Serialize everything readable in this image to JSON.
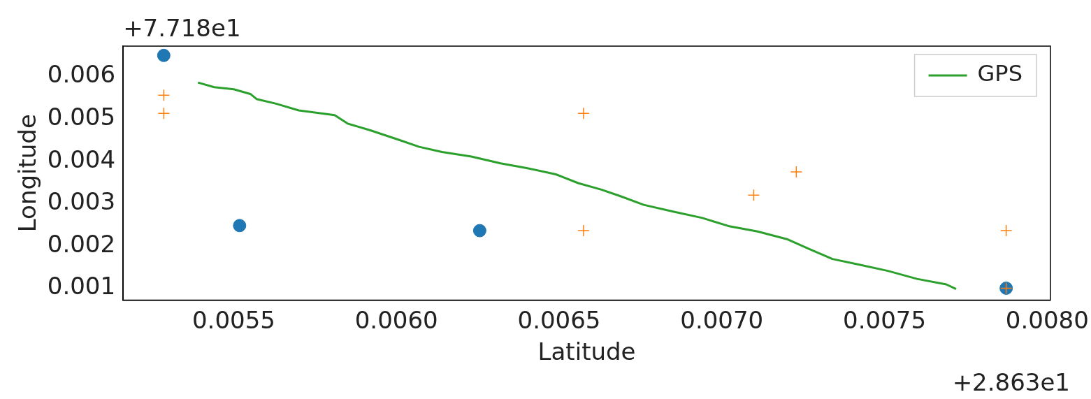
{
  "chart_data": {
    "type": "scatter",
    "xlabel": "Latitude",
    "ylabel": "Longitude",
    "annotations": [
      "+7.718e1",
      "+2.863e1"
    ],
    "xlim": [
      0.00516,
      0.00801
    ],
    "ylim": [
      0.00072,
      0.00672
    ],
    "xticks": [
      {
        "value": 0.0055,
        "label": "0.0055"
      },
      {
        "value": 0.006,
        "label": "0.0060"
      },
      {
        "value": 0.0065,
        "label": "0.0065"
      },
      {
        "value": 0.007,
        "label": "0.0070"
      },
      {
        "value": 0.0075,
        "label": "0.0075"
      },
      {
        "value": 0.008,
        "label": "0.0080"
      }
    ],
    "yticks": [
      0.001,
      0.002,
      0.003,
      0.004,
      0.005,
      0.006
    ],
    "grid": false,
    "legend": "top right",
    "series": [
      {
        "marker": "circle",
        "color": "#1f77b4",
        "x": [
          0.005285,
          0.005518,
          0.006256,
          0.007874
        ],
        "values": [
          0.0065,
          0.00248,
          0.00236,
          0.001
        ]
      },
      {
        "marker": "cross",
        "color": "#ff7f0e",
        "x": [
          0.005285,
          0.005285,
          0.006575,
          0.006575,
          0.007098,
          0.007229,
          0.007874,
          0.007874
        ],
        "values": [
          0.00556,
          0.00513,
          0.00513,
          0.00236,
          0.0032,
          0.00375,
          0.00236,
          0.001
        ]
      },
      {
        "type": "line",
        "name": "GPS",
        "color": "#2ca02c",
        "marker": "none",
        "x": [
          0.00539,
          0.00544,
          0.0055,
          0.005551,
          0.00557,
          0.00563,
          0.0057,
          0.00581,
          0.00585,
          0.00592,
          0.00601,
          0.00607,
          0.00614,
          0.00623,
          0.00632,
          0.0064,
          0.00649,
          0.00656,
          0.00663,
          0.00669,
          0.00676,
          0.00685,
          0.00694,
          0.00702,
          0.00711,
          0.0072,
          0.00727,
          0.00734,
          0.00742,
          0.00751,
          0.0076,
          0.00769,
          0.00772
        ],
        "values": [
          0.00586,
          0.00575,
          0.0057,
          0.00559,
          0.00547,
          0.00536,
          0.0052,
          0.00509,
          0.00489,
          0.00473,
          0.0045,
          0.00434,
          0.00422,
          0.00411,
          0.00395,
          0.00384,
          0.00369,
          0.00348,
          0.00333,
          0.00317,
          0.00297,
          0.00281,
          0.00266,
          0.00247,
          0.00234,
          0.00216,
          0.00192,
          0.00169,
          0.00156,
          0.00141,
          0.00122,
          0.00109,
          0.00098
        ]
      }
    ]
  }
}
